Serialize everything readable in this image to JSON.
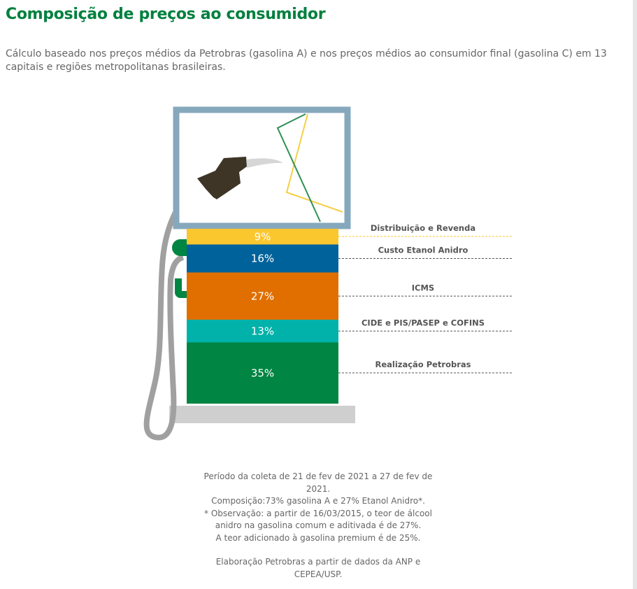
{
  "header": {
    "title": "Composição de preços ao consumidor",
    "intro": "Cálculo baseado nos preços médios da Petrobras (gasolina A) e nos preços médios ao consumidor final (gasolina C) em 13 capitais e regiões metropolitanas brasileiras."
  },
  "chart_data": {
    "type": "stacked-bar",
    "unit": "%",
    "segments": [
      {
        "label": "Distribuição e Revenda",
        "value": 9,
        "display": "9%",
        "color": "#fbc72f"
      },
      {
        "label": "Custo Etanol Anidro",
        "value": 16,
        "display": "16%",
        "color": "#00629b"
      },
      {
        "label": "ICMS",
        "value": 27,
        "display": "27%",
        "color": "#e06f00"
      },
      {
        "label": "CIDE e PIS/PASEP e COFINS",
        "value": 13,
        "display": "13%",
        "color": "#00b2a9"
      },
      {
        "label": "Realização Petrobras",
        "value": 35,
        "display": "35%",
        "color": "#008542"
      }
    ]
  },
  "footer": {
    "lines": [
      "Período da coleta de 21 de fev de 2021 a 27 de fev de 2021.",
      "Composição:73% gasolina A e 27% Etanol Anidro*.",
      "*  Observação: a partir de 16/03/2015, o teor de álcool anidro na gasolina comum e aditivada é de 27%.",
      "A teor adicionado à gasolina premium é de 25%."
    ],
    "source": "Elaboração Petrobras a partir de dados da ANP e CEPEA/USP."
  }
}
